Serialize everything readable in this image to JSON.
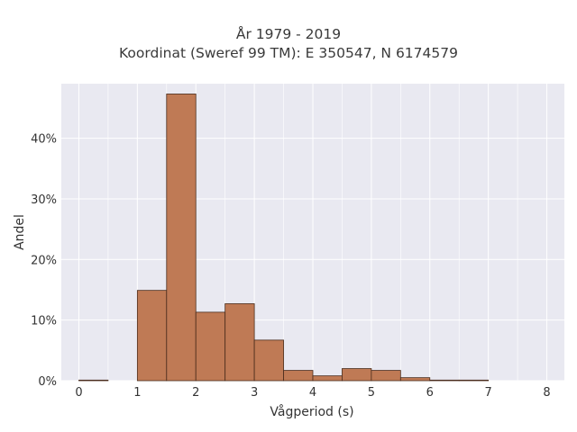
{
  "chart_data": {
    "type": "bar",
    "title_lines": [
      "År 1979 - 2019",
      "Koordinat (Sweref 99 TM): E 350547, N 6174579"
    ],
    "xlabel": "Vågperiod (s)",
    "ylabel": "Andel",
    "xlim": [
      -0.3,
      8.3
    ],
    "ylim": [
      0,
      49
    ],
    "x_ticks": [
      0,
      1,
      2,
      3,
      4,
      5,
      6,
      7,
      8
    ],
    "x_tick_labels": [
      "0",
      "1",
      "2",
      "3",
      "4",
      "5",
      "6",
      "7",
      "8"
    ],
    "y_ticks": [
      0,
      10,
      20,
      30,
      40
    ],
    "y_tick_labels": [
      "0%",
      "10%",
      "20%",
      "30%",
      "40%"
    ],
    "grid": true,
    "bar_color": "#bf7a55",
    "edge_color": "#4a2c1c",
    "bins": [
      {
        "start": 0.0,
        "end": 0.5,
        "value": 0.1
      },
      {
        "start": 0.5,
        "end": 1.0,
        "value": 0.0
      },
      {
        "start": 1.0,
        "end": 1.5,
        "value": 14.9
      },
      {
        "start": 1.5,
        "end": 2.0,
        "value": 47.3
      },
      {
        "start": 2.0,
        "end": 2.5,
        "value": 11.3
      },
      {
        "start": 2.5,
        "end": 3.0,
        "value": 12.7
      },
      {
        "start": 3.0,
        "end": 3.5,
        "value": 6.7
      },
      {
        "start": 3.5,
        "end": 4.0,
        "value": 1.7
      },
      {
        "start": 4.0,
        "end": 4.5,
        "value": 0.8
      },
      {
        "start": 4.5,
        "end": 5.0,
        "value": 2.0
      },
      {
        "start": 5.0,
        "end": 5.5,
        "value": 1.7
      },
      {
        "start": 5.5,
        "end": 6.0,
        "value": 0.5
      },
      {
        "start": 6.0,
        "end": 6.5,
        "value": 0.1
      },
      {
        "start": 6.5,
        "end": 7.0,
        "value": 0.1
      }
    ]
  }
}
